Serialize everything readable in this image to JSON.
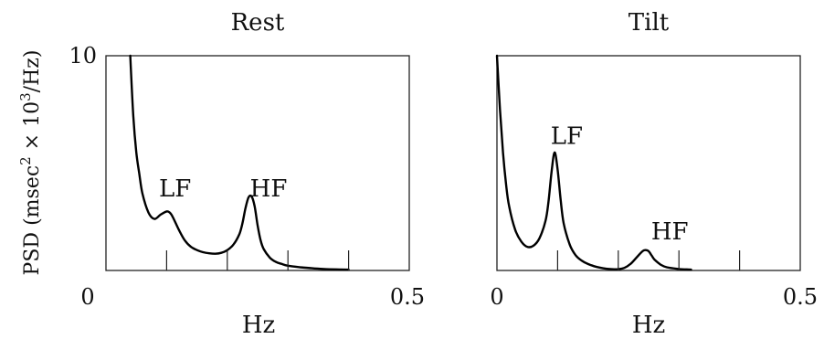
{
  "figure": {
    "ylabel_main": "PSD (msec",
    "ylabel_sup1": "2",
    "ylabel_mid": " × 10",
    "ylabel_sup2": "3",
    "ylabel_end": "/Hz)"
  },
  "chart_data": [
    {
      "type": "line",
      "title": "Rest",
      "xlabel": "Hz",
      "xlim": [
        0,
        0.5
      ],
      "ylim": [
        0,
        10
      ],
      "x_tick_labels": [
        "0",
        "0.5"
      ],
      "y_tick_labels": [
        "10"
      ],
      "minor_ticks": [
        0.1,
        0.2,
        0.3,
        0.4
      ],
      "grid": false,
      "series": [
        {
          "x": [
            0.04,
            0.045,
            0.05,
            0.055,
            0.06,
            0.07,
            0.08,
            0.09,
            0.1,
            0.105,
            0.11,
            0.12,
            0.13,
            0.14,
            0.15,
            0.16,
            0.17,
            0.18,
            0.19,
            0.2,
            0.21,
            0.22,
            0.225,
            0.23,
            0.235,
            0.24,
            0.245,
            0.25,
            0.255,
            0.26,
            0.27,
            0.28,
            0.29,
            0.3,
            0.32,
            0.34,
            0.36,
            0.38,
            0.4
          ],
          "y": [
            10,
            7.2,
            5.5,
            4.5,
            3.6,
            2.7,
            2.4,
            2.6,
            2.75,
            2.7,
            2.5,
            1.9,
            1.4,
            1.1,
            0.95,
            0.85,
            0.8,
            0.78,
            0.82,
            0.95,
            1.2,
            1.7,
            2.2,
            2.9,
            3.4,
            3.45,
            3.0,
            2.1,
            1.4,
            1.0,
            0.6,
            0.4,
            0.3,
            0.22,
            0.15,
            0.1,
            0.07,
            0.05,
            0.04
          ]
        }
      ],
      "annotations": [
        {
          "text": "LF",
          "x": 0.114,
          "y": 3.45
        },
        {
          "text": "HF",
          "x": 0.268,
          "y": 3.45
        }
      ]
    },
    {
      "type": "line",
      "title": "Tilt",
      "xlabel": "Hz",
      "xlim": [
        0,
        0.5
      ],
      "ylim": [
        0,
        10
      ],
      "x_tick_labels": [
        "0",
        "0.5"
      ],
      "minor_ticks": [
        0.1,
        0.2,
        0.3,
        0.4
      ],
      "grid": false,
      "series": [
        {
          "x": [
            0.0,
            0.005,
            0.01,
            0.015,
            0.02,
            0.03,
            0.04,
            0.05,
            0.06,
            0.07,
            0.08,
            0.085,
            0.09,
            0.095,
            0.1,
            0.105,
            0.11,
            0.12,
            0.13,
            0.14,
            0.15,
            0.16,
            0.17,
            0.18,
            0.19,
            0.2,
            0.21,
            0.22,
            0.23,
            0.24,
            0.245,
            0.25,
            0.255,
            0.26,
            0.27,
            0.28,
            0.3,
            0.32
          ],
          "y": [
            10,
            7.5,
            5.5,
            4.0,
            3.0,
            1.9,
            1.35,
            1.1,
            1.15,
            1.5,
            2.3,
            3.2,
            4.6,
            5.5,
            4.7,
            3.3,
            2.2,
            1.2,
            0.7,
            0.45,
            0.3,
            0.2,
            0.13,
            0.08,
            0.06,
            0.06,
            0.12,
            0.3,
            0.6,
            0.9,
            0.95,
            0.9,
            0.7,
            0.5,
            0.27,
            0.15,
            0.07,
            0.04
          ]
        }
      ],
      "annotations": [
        {
          "text": "LF",
          "x": 0.115,
          "y": 5.9
        },
        {
          "text": "HF",
          "x": 0.285,
          "y": 1.45
        }
      ]
    }
  ]
}
